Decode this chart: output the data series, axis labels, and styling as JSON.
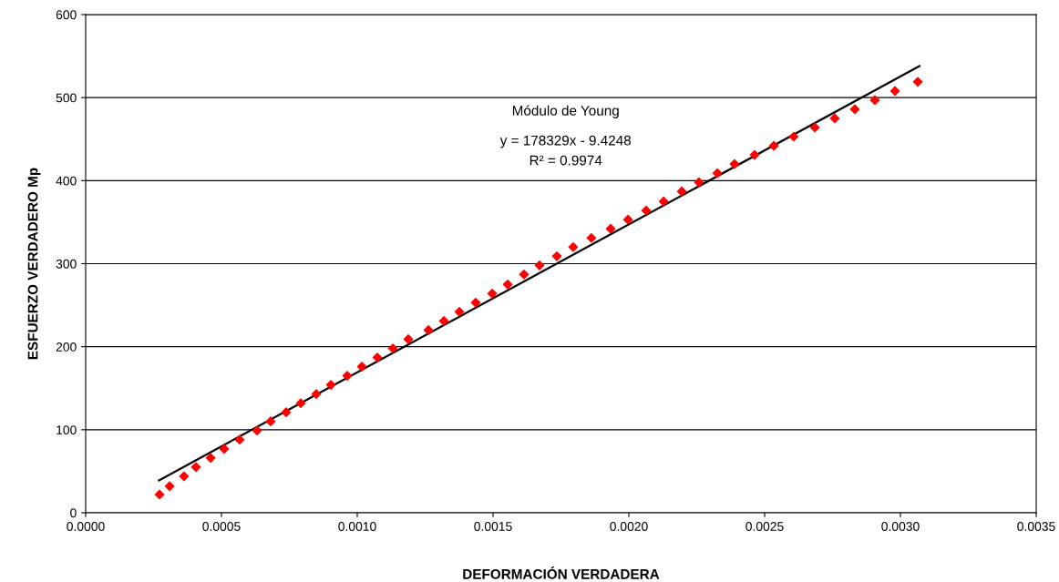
{
  "chart_data": {
    "type": "scatter",
    "xlabel": "DEFORMACIÓN VERDADERA",
    "ylabel": "ESFUERZO VERDADERO Mp",
    "xlim": [
      0,
      0.0035
    ],
    "ylim": [
      0,
      600
    ],
    "xticks": [
      {
        "value": 0,
        "label": "0.0000"
      },
      {
        "value": 0.0005,
        "label": "0.0005"
      },
      {
        "value": 0.001,
        "label": "0.0010"
      },
      {
        "value": 0.0015,
        "label": "0.0015"
      },
      {
        "value": 0.002,
        "label": "0.0020"
      },
      {
        "value": 0.0025,
        "label": "0.0025"
      },
      {
        "value": 0.003,
        "label": "0.0030"
      },
      {
        "value": 0.0035,
        "label": "0.0035"
      }
    ],
    "yticks": [
      0,
      100,
      200,
      300,
      400,
      500,
      600
    ],
    "grid": "y",
    "legend": false,
    "annotations": [
      "Módulo de Young",
      "y = 178329x - 9.4248",
      "R² = 0.9974"
    ],
    "series": [
      {
        "color": "#ff0000",
        "marker": "diamond",
        "x": [
          0.000272,
          0.000309,
          0.000362,
          0.000406,
          0.00046,
          0.00051,
          0.000567,
          0.000631,
          0.000681,
          0.000738,
          0.000792,
          0.000849,
          0.000903,
          0.000963,
          0.001017,
          0.001074,
          0.001131,
          0.001188,
          0.001262,
          0.001319,
          0.001376,
          0.001436,
          0.001497,
          0.001554,
          0.001614,
          0.001671,
          0.001735,
          0.001795,
          0.001862,
          0.001933,
          0.001997,
          0.002064,
          0.002128,
          0.002195,
          0.002258,
          0.002326,
          0.002389,
          0.002463,
          0.002534,
          0.002607,
          0.002685,
          0.002758,
          0.002832,
          0.002906,
          0.00298,
          0.003064
        ],
        "values": [
          22,
          32,
          44,
          55,
          66,
          77,
          88,
          99,
          110,
          121,
          132,
          143,
          154,
          165,
          176,
          187,
          198,
          209,
          220,
          231,
          242,
          253,
          264,
          275,
          287,
          298,
          309,
          320,
          331,
          342,
          353,
          364,
          375,
          387,
          398,
          409,
          420,
          431,
          442,
          453,
          464,
          475,
          486,
          497,
          508,
          519
        ]
      },
      {
        "type": "line",
        "color": "#000000",
        "marker": "none",
        "line_style": "solid",
        "x": [
          0.00027,
          0.00307
        ],
        "values": [
          39,
          538
        ]
      }
    ]
  }
}
